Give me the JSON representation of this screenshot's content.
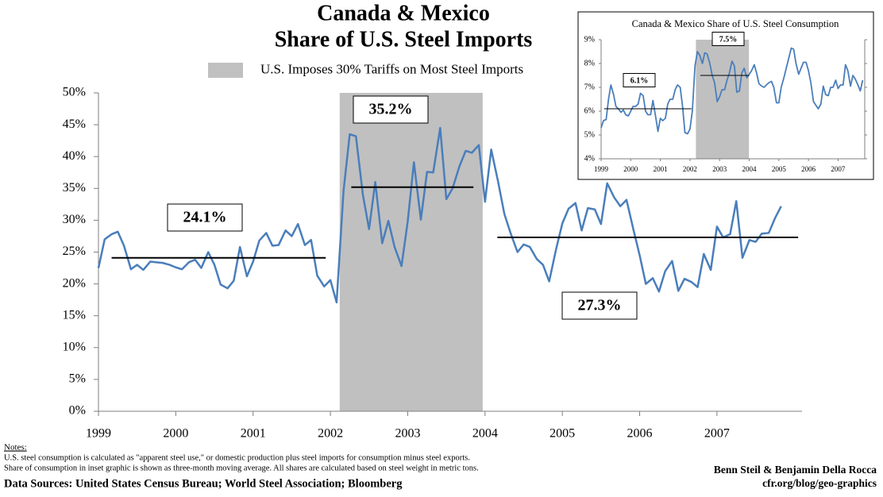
{
  "chart_data": [
    {
      "type": "line",
      "title": [
        "Canada & Mexico",
        "Share of U.S. Steel Imports"
      ],
      "color": "#4a7ebb",
      "shade": {
        "range": [
          2002.12,
          2003.97
        ],
        "color": "#c0c0c0",
        "label": "U.S. Imposes 30% Tariffs on Most Steel Imports"
      },
      "xlim": [
        1999,
        2008.1
      ],
      "xticks": [
        1999,
        2000,
        2001,
        2002,
        2003,
        2004,
        2005,
        2006,
        2007
      ],
      "ylim": [
        0,
        50
      ],
      "yticks": [
        {
          "value": 0,
          "label": "0%"
        },
        {
          "value": 5,
          "label": "5%"
        },
        {
          "value": 10,
          "label": "10%"
        },
        {
          "value": 15,
          "label": "15%"
        },
        {
          "value": 20,
          "label": "20%"
        },
        {
          "value": 25,
          "label": "25%"
        },
        {
          "value": 30,
          "label": "30%"
        },
        {
          "value": 35,
          "label": "35%"
        },
        {
          "value": 40,
          "label": "40%"
        },
        {
          "value": 45,
          "label": "45%"
        },
        {
          "value": 50,
          "label": "50%"
        }
      ],
      "averages": [
        {
          "value": 24.1,
          "label": "24.1%",
          "x": [
            1999.17,
            2001.94
          ]
        },
        {
          "value": 35.2,
          "label": "35.2%",
          "x": [
            2002.27,
            2003.85
          ]
        },
        {
          "value": 27.3,
          "label": "27.3%",
          "x": [
            2004.16,
            2008.05
          ]
        }
      ],
      "x": [
        1999,
        1999.08,
        1999.17,
        1999.25,
        1999.33,
        1999.42,
        1999.5,
        1999.58,
        1999.67,
        1999.75,
        1999.83,
        1999.92,
        2000,
        2000.08,
        2000.17,
        2000.25,
        2000.33,
        2000.42,
        2000.5,
        2000.58,
        2000.67,
        2000.75,
        2000.83,
        2000.92,
        2001,
        2001.08,
        2001.17,
        2001.25,
        2001.33,
        2001.42,
        2001.5,
        2001.58,
        2001.67,
        2001.75,
        2001.83,
        2001.92,
        2002,
        2002.08,
        2002.17,
        2002.25,
        2002.33,
        2002.42,
        2002.5,
        2002.58,
        2002.67,
        2002.75,
        2002.83,
        2002.92,
        2003,
        2003.08,
        2003.17,
        2003.25,
        2003.33,
        2003.42,
        2003.5,
        2003.58,
        2003.67,
        2003.75,
        2003.83,
        2003.92,
        2004,
        2004.08,
        2004.17,
        2004.25,
        2004.33,
        2004.42,
        2004.5,
        2004.58,
        2004.67,
        2004.75,
        2004.83,
        2004.92,
        2005,
        2005.08,
        2005.17,
        2005.25,
        2005.33,
        2005.42,
        2005.5,
        2005.58,
        2005.67,
        2005.75,
        2005.83,
        2005.92,
        2006,
        2006.08,
        2006.17,
        2006.25,
        2006.33,
        2006.42,
        2006.5,
        2006.58,
        2006.67,
        2006.75,
        2006.83,
        2006.92,
        2007,
        2007.08,
        2007.17,
        2007.25,
        2007.33,
        2007.42,
        2007.5,
        2007.58,
        2007.67,
        2007.75,
        2007.83
      ],
      "values": [
        22.5,
        27,
        27.8,
        28.2,
        26,
        22.3,
        23,
        22.2,
        23.5,
        23.4,
        23.3,
        23.0,
        22.6,
        22.3,
        23.4,
        23.8,
        22.5,
        25,
        23,
        19.9,
        19.3,
        20.5,
        25.8,
        21.2,
        23.5,
        26.8,
        28,
        26,
        26.1,
        28.4,
        27.5,
        29.4,
        26.1,
        26.9,
        21.3,
        19.6,
        20.6,
        17.1,
        34.6,
        43.5,
        43.2,
        34,
        28.6,
        36,
        26.4,
        29.9,
        25.8,
        22.8,
        29.8,
        39.1,
        30.1,
        37.6,
        37.5,
        44.5,
        33.3,
        35,
        38.5,
        40.9,
        40.6,
        41.8,
        32.9,
        41.1,
        36,
        31,
        28,
        25,
        26.2,
        25.8,
        23.9,
        23,
        20.4,
        25.5,
        29.5,
        31.8,
        32.7,
        28.4,
        31.9,
        31.7,
        29.4,
        35.8,
        33.6,
        32.2,
        33.2,
        28.5,
        24.5,
        20,
        20.9,
        18.8,
        22,
        23.6,
        18.9,
        20.8,
        20.3,
        19.5,
        24.7,
        22.2,
        29,
        27.3,
        27.8,
        33,
        24.1,
        26.9,
        26.6,
        27.9,
        28,
        30.3,
        32.2
      ]
    },
    {
      "type": "line",
      "title": [
        "Canada & Mexico Share of U.S. Steel Consumption"
      ],
      "color": "#4a7ebb",
      "shade": {
        "range": [
          2002.2,
          2003.99
        ],
        "color": "#c0c0c0"
      },
      "xlim": [
        1999,
        2007.9
      ],
      "xticks": [
        1999,
        2000,
        2001,
        2002,
        2003,
        2004,
        2005,
        2006,
        2007
      ],
      "ylim": [
        4,
        9
      ],
      "yticks": [
        {
          "value": 4,
          "label": "4%"
        },
        {
          "value": 5,
          "label": "5%"
        },
        {
          "value": 6,
          "label": "6%"
        },
        {
          "value": 7,
          "label": "7%"
        },
        {
          "value": 8,
          "label": "8%"
        },
        {
          "value": 9,
          "label": "9%"
        }
      ],
      "averages": [
        {
          "value": 6.1,
          "label": "6.1%",
          "x": [
            1999.1,
            2002.05
          ]
        },
        {
          "value": 7.5,
          "label": "7.5%",
          "x": [
            2002.35,
            2004.0
          ]
        }
      ],
      "x": [
        1999,
        1999.08,
        1999.17,
        1999.25,
        1999.33,
        1999.42,
        1999.5,
        1999.58,
        1999.67,
        1999.75,
        1999.83,
        1999.92,
        2000,
        2000.08,
        2000.17,
        2000.25,
        2000.33,
        2000.42,
        2000.5,
        2000.58,
        2000.67,
        2000.75,
        2000.83,
        2000.92,
        2001,
        2001.08,
        2001.17,
        2001.25,
        2001.33,
        2001.42,
        2001.5,
        2001.58,
        2001.67,
        2001.75,
        2001.83,
        2001.92,
        2002,
        2002.08,
        2002.17,
        2002.25,
        2002.33,
        2002.42,
        2002.5,
        2002.58,
        2002.67,
        2002.75,
        2002.83,
        2002.92,
        2003,
        2003.08,
        2003.17,
        2003.25,
        2003.33,
        2003.42,
        2003.5,
        2003.58,
        2003.67,
        2003.75,
        2003.83,
        2003.92,
        2004,
        2004.08,
        2004.17,
        2004.25,
        2004.33,
        2004.42,
        2004.5,
        2004.58,
        2004.67,
        2004.75,
        2004.83,
        2004.92,
        2005,
        2005.08,
        2005.17,
        2005.25,
        2005.33,
        2005.42,
        2005.5,
        2005.58,
        2005.67,
        2005.75,
        2005.83,
        2005.92,
        2006,
        2006.08,
        2006.17,
        2006.25,
        2006.33,
        2006.42,
        2006.5,
        2006.58,
        2006.67,
        2006.75,
        2006.83,
        2006.92,
        2007,
        2007.08,
        2007.17,
        2007.25,
        2007.33,
        2007.42,
        2007.5,
        2007.58,
        2007.67,
        2007.75,
        2007.83
      ],
      "values": [
        5.3,
        5.6,
        5.65,
        6.5,
        7.1,
        6.7,
        6.2,
        6.1,
        5.95,
        6.05,
        5.85,
        5.8,
        6.0,
        6.2,
        6.2,
        6.3,
        6.75,
        6.65,
        6.0,
        5.85,
        5.85,
        6.45,
        5.85,
        5.15,
        5.7,
        5.6,
        5.7,
        6.3,
        6.5,
        6.5,
        6.9,
        7.1,
        7.0,
        6.2,
        5.1,
        5.05,
        5.25,
        6.0,
        7.9,
        8.5,
        8.35,
        8.0,
        8.45,
        8.4,
        8.0,
        7.5,
        7.2,
        6.4,
        6.6,
        6.9,
        6.9,
        7.3,
        7.6,
        8.1,
        7.9,
        6.8,
        6.85,
        7.6,
        7.8,
        7.4,
        7.55,
        7.7,
        7.95,
        7.6,
        7.15,
        7.05,
        7.0,
        7.1,
        7.2,
        7.25,
        7.0,
        6.35,
        6.35,
        7.0,
        7.4,
        7.8,
        8.2,
        8.65,
        8.6,
        8.0,
        7.55,
        7.8,
        8.05,
        8.05,
        7.7,
        7.2,
        6.4,
        6.25,
        6.1,
        6.3,
        7.05,
        6.7,
        6.65,
        7.0,
        7.0,
        7.3,
        6.95,
        7.1,
        7.1,
        7.95,
        7.7,
        7.05,
        7.5,
        7.35,
        7.1,
        6.85,
        7.3
      ]
    }
  ],
  "footer": {
    "notes_heading": "Notes:",
    "notes": [
      "U.S. steel consumption is calculated as \"apparent steel use,\" or domestic production plus steel imports for consumption minus steel exports.",
      "Share of consumption in inset graphic is shown as three-month moving average. All shares are calculated based on steel weight in metric tons."
    ],
    "sources": "Data Sources: United States Census Bureau; World Steel Association; Bloomberg",
    "credit": [
      "Benn Steil & Benjamin Della Rocca",
      "cfr.org/blog/geo-graphics"
    ]
  }
}
